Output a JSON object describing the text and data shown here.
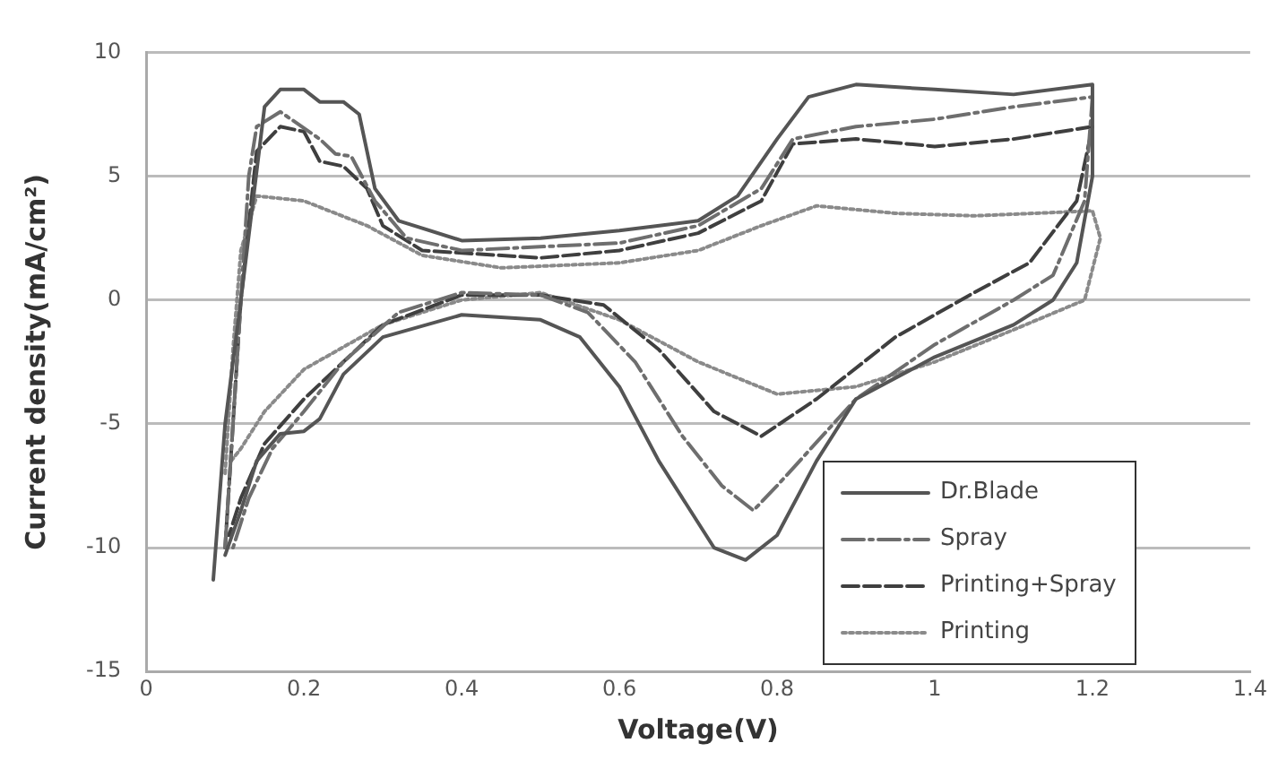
{
  "chart_data": {
    "type": "line",
    "xlabel": "Voltage(V)",
    "ylabel": "Current density(mA/cm²)",
    "xlim": [
      0,
      1.4
    ],
    "xticks": [
      0,
      0.2,
      0.4,
      0.6,
      0.8,
      1,
      1.2,
      1.4
    ],
    "ylim": [
      -15,
      10
    ],
    "yticks": [
      -15,
      -10,
      -5,
      0,
      5,
      10
    ],
    "grid": "y",
    "legend": "bottom right",
    "marker": "none",
    "series": [
      {
        "name": "Dr.Blade",
        "color": "#555555",
        "line_style": "solid",
        "x": [
          0.085,
          0.1,
          0.12,
          0.15,
          0.17,
          0.2,
          0.22,
          0.25,
          0.27,
          0.29,
          0.32,
          0.4,
          0.5,
          0.6,
          0.7,
          0.75,
          0.8,
          0.84,
          0.9,
          1.0,
          1.1,
          1.2,
          1.2,
          1.18,
          1.15,
          1.1,
          1.0,
          0.9,
          0.85,
          0.8,
          0.76,
          0.72,
          0.65,
          0.6,
          0.55,
          0.5,
          0.4,
          0.3,
          0.25,
          0.22,
          0.2,
          0.17,
          0.14,
          0.12,
          0.1
        ],
        "values": [
          -11.3,
          -5,
          0,
          7.8,
          8.5,
          8.5,
          8,
          8,
          7.5,
          4.5,
          3.2,
          2.4,
          2.5,
          2.8,
          3.2,
          4.2,
          6.5,
          8.2,
          8.7,
          8.5,
          8.3,
          8.7,
          5,
          1.5,
          0,
          -1,
          -2.3,
          -4,
          -6.5,
          -9.5,
          -10.5,
          -10,
          -6.5,
          -3.5,
          -1.5,
          -0.8,
          -0.6,
          -1.5,
          -3,
          -4.8,
          -5.3,
          -5.4,
          -6.5,
          -8.5,
          -10.3
        ]
      },
      {
        "name": "Spray",
        "color": "#6e6e6e",
        "line_style": "dashdot",
        "x": [
          0.1,
          0.12,
          0.13,
          0.14,
          0.17,
          0.22,
          0.24,
          0.26,
          0.29,
          0.33,
          0.4,
          0.6,
          0.7,
          0.78,
          0.82,
          0.9,
          1.0,
          1.1,
          1.2,
          1.19,
          1.15,
          1.1,
          1.0,
          0.9,
          0.8,
          0.77,
          0.73,
          0.68,
          0.62,
          0.56,
          0.5,
          0.4,
          0.32,
          0.25,
          0.2,
          0.16,
          0.13,
          0.11
        ],
        "values": [
          -10,
          0,
          5,
          7,
          7.6,
          6.5,
          5.9,
          5.8,
          4,
          2.5,
          2,
          2.3,
          3,
          4.5,
          6.5,
          7,
          7.3,
          7.8,
          8.2,
          4,
          1,
          0,
          -1.8,
          -4,
          -7.5,
          -8.5,
          -7.5,
          -5.5,
          -2.5,
          -0.5,
          0.2,
          0.3,
          -0.5,
          -2.5,
          -4.5,
          -6,
          -8,
          -10
        ]
      },
      {
        "name": "Printing+Spray",
        "color": "#3f3f3f",
        "line_style": "dashed",
        "x": [
          0.1,
          0.12,
          0.14,
          0.17,
          0.2,
          0.22,
          0.25,
          0.28,
          0.3,
          0.35,
          0.5,
          0.6,
          0.7,
          0.78,
          0.82,
          0.9,
          1.0,
          1.1,
          1.2,
          1.18,
          1.12,
          1.05,
          0.95,
          0.85,
          0.78,
          0.72,
          0.65,
          0.58,
          0.5,
          0.4,
          0.3,
          0.25,
          0.2,
          0.15,
          0.12,
          0.105
        ],
        "values": [
          -10,
          0,
          6,
          7,
          6.8,
          5.6,
          5.4,
          4.5,
          3,
          2,
          1.7,
          2,
          2.7,
          4,
          6.3,
          6.5,
          6.2,
          6.5,
          7,
          4,
          1.5,
          0.3,
          -1.5,
          -4,
          -5.5,
          -4.5,
          -2,
          -0.2,
          0.2,
          0.2,
          -1,
          -2.5,
          -4,
          -5.8,
          -8,
          -9.5
        ]
      },
      {
        "name": "Printing",
        "color": "#8a8a8a",
        "line_style": "dotted",
        "x": [
          0.1,
          0.11,
          0.12,
          0.14,
          0.2,
          0.28,
          0.35,
          0.45,
          0.6,
          0.7,
          0.78,
          0.85,
          0.95,
          1.05,
          1.2,
          1.21,
          1.19,
          1.1,
          1.0,
          0.9,
          0.8,
          0.7,
          0.6,
          0.5,
          0.4,
          0.3,
          0.2,
          0.15,
          0.12,
          0.105
        ],
        "values": [
          -7,
          -2,
          2,
          4.2,
          4,
          3,
          1.8,
          1.3,
          1.5,
          2,
          3,
          3.8,
          3.5,
          3.4,
          3.6,
          2.5,
          0,
          -1.2,
          -2.5,
          -3.5,
          -3.8,
          -2.5,
          -0.8,
          0.3,
          0,
          -1,
          -2.8,
          -4.5,
          -6,
          -6.6
        ]
      }
    ]
  }
}
